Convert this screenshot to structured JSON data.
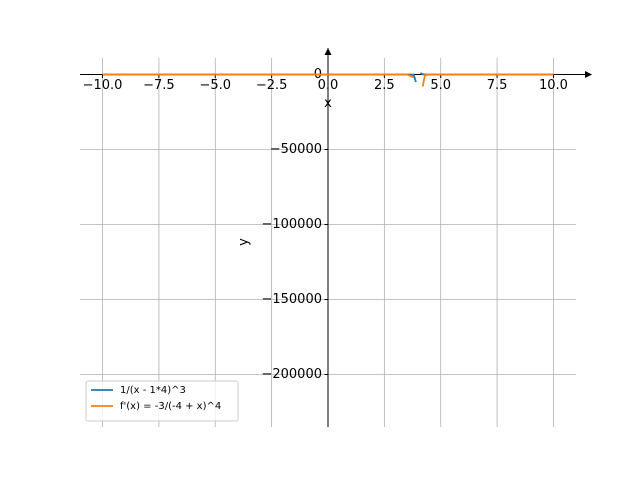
{
  "chart_data": {
    "type": "line",
    "x": [
      -10,
      -8,
      -6,
      -4,
      -2,
      0,
      2,
      3,
      3.5,
      3.8,
      3.9,
      4,
      4.1,
      4.2,
      4.3,
      4.5,
      5,
      6,
      8,
      10
    ],
    "series": [
      {
        "name": "1/(x - 1*4)^3",
        "color": "#1f77b4",
        "values": [
          -0.000364,
          -0.000579,
          -0.001,
          -0.00195,
          -0.00463,
          -0.0156,
          -0.125,
          -1,
          -8,
          -125,
          -5000,
          null,
          1000,
          125,
          37,
          8,
          1,
          0.125,
          0.0156,
          0.00463
        ]
      },
      {
        "name": "f'(x) = -3/(-4 + x)^4",
        "color": "#ff7f0e",
        "values": [
          -7.81e-05,
          -0.000145,
          -0.0003,
          -0.000732,
          -0.00231,
          -0.0117,
          -0.1875,
          -3,
          -48,
          -1875,
          null,
          null,
          null,
          -8000,
          -370,
          -48,
          -3,
          -0.1875,
          -0.0117,
          -0.00231
        ]
      }
    ],
    "xlabel": "x",
    "ylabel": "y",
    "xlim": [
      -11,
      11
    ],
    "xticks": [
      {
        "value": -10,
        "label": "−10.0"
      },
      {
        "value": -7.5,
        "label": "−7.5"
      },
      {
        "value": -5,
        "label": "−5.0"
      },
      {
        "value": -2.5,
        "label": "−2.5"
      },
      {
        "value": 0,
        "label": "0.0"
      },
      {
        "value": 2.5,
        "label": "2.5"
      },
      {
        "value": 5,
        "label": "5.0"
      },
      {
        "value": 7.5,
        "label": "7.5"
      },
      {
        "value": 10,
        "label": "10.0"
      }
    ],
    "ylim": [
      -235000,
      11000
    ],
    "yticks": [
      0,
      {
        "value": -50000,
        "label": "−50000"
      },
      {
        "value": -100000,
        "label": "−100000"
      },
      {
        "value": -150000,
        "label": "−150000"
      },
      {
        "value": -200000,
        "label": "−200000"
      }
    ],
    "grid": true,
    "legend": "lower left"
  }
}
